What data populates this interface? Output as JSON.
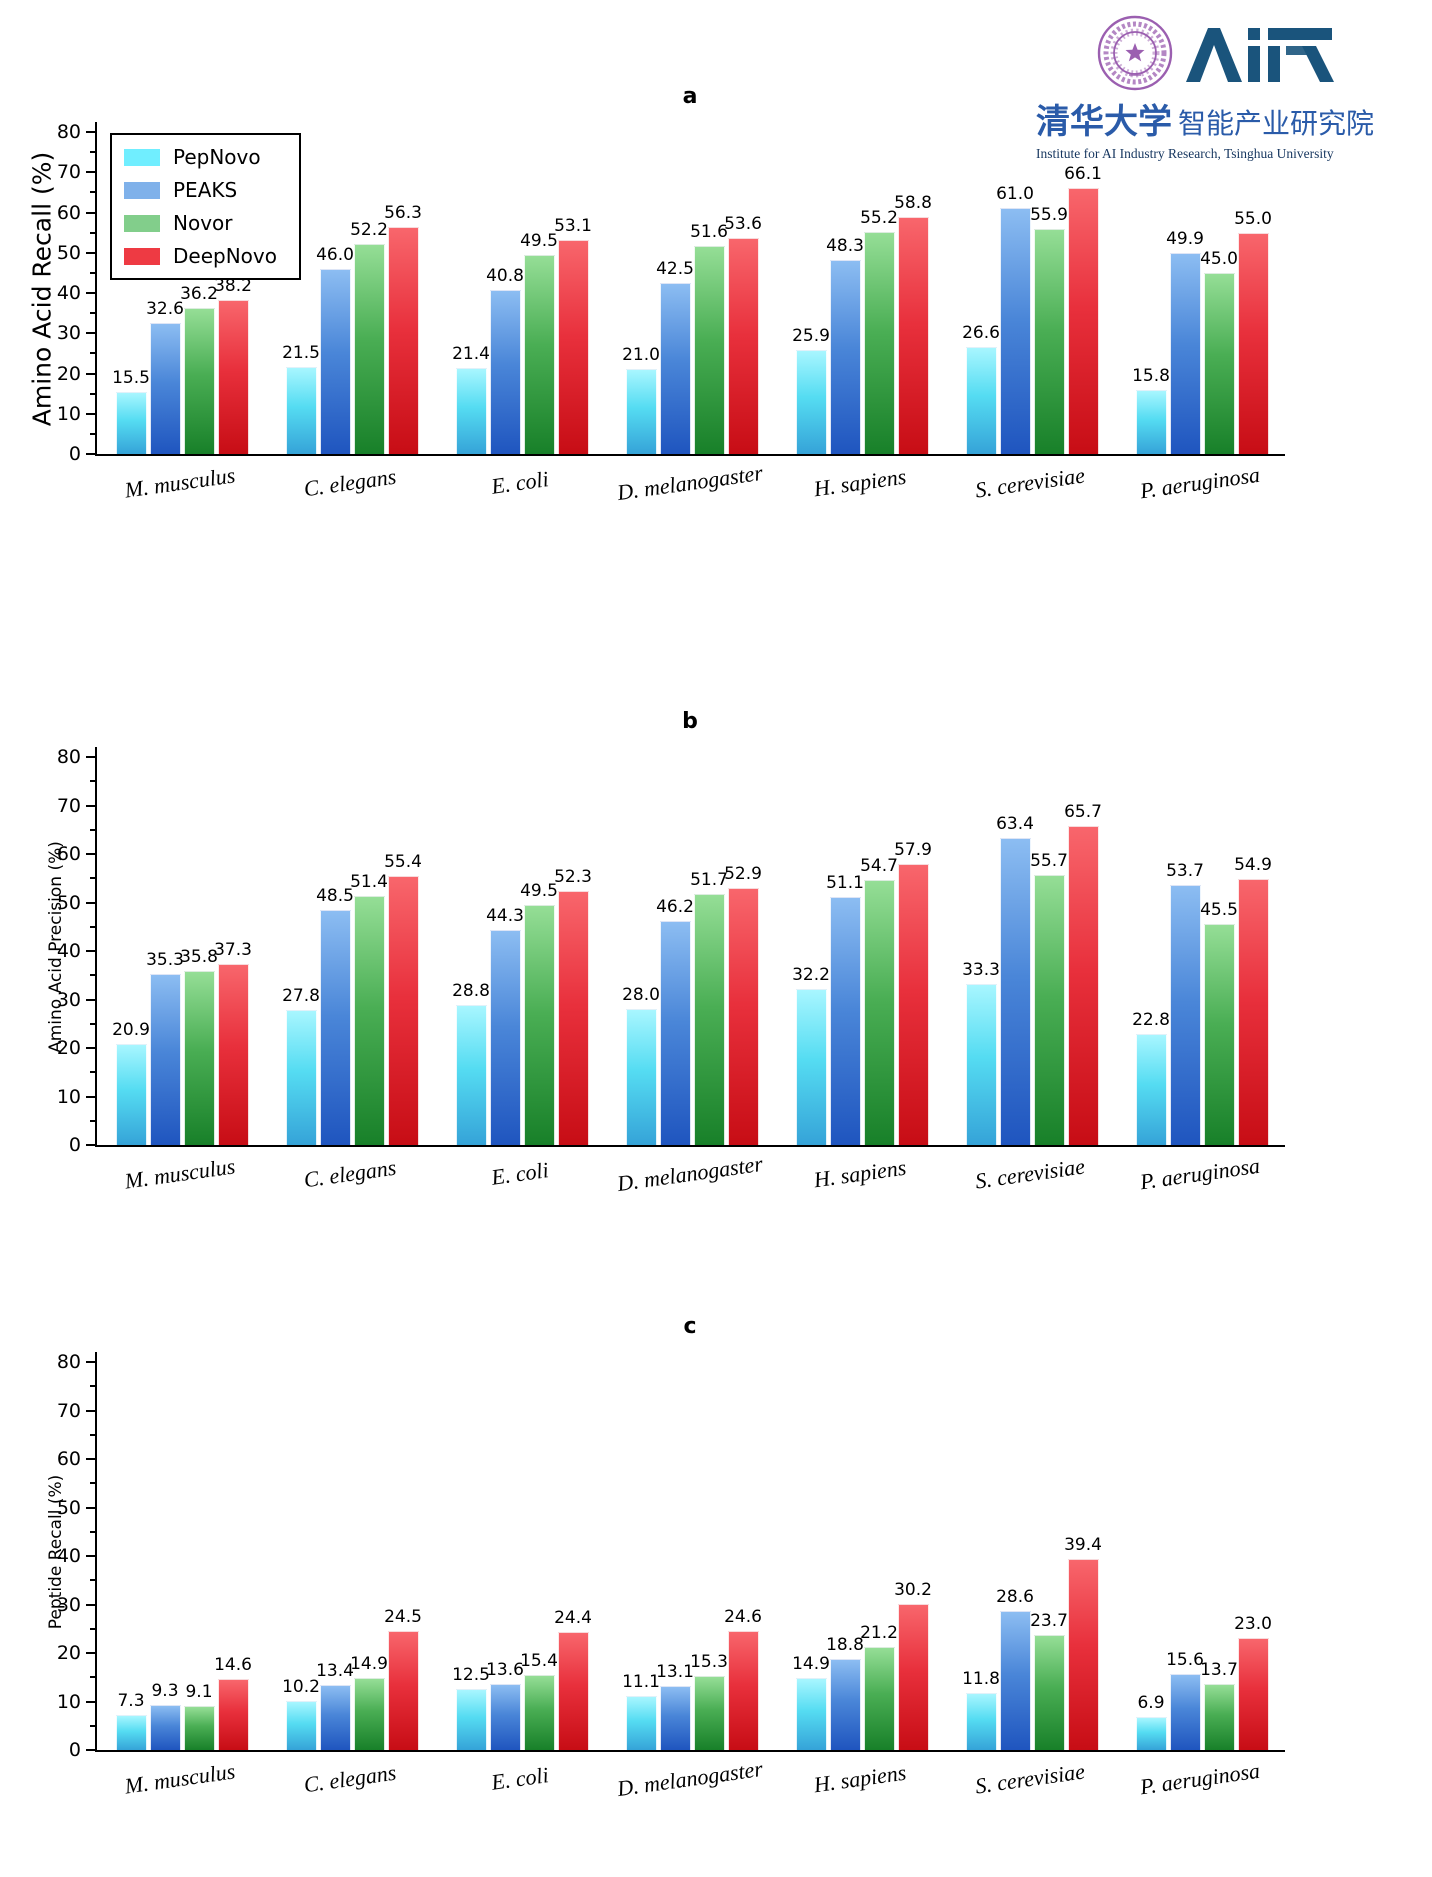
{
  "logo": {
    "air_text": "AiR",
    "cn_calligraphy": "清华大学",
    "cn_institute": "智能产业研究院",
    "en_institute": "Institute for AI Industry Research,  Tsinghua University"
  },
  "legend": {
    "position": "upper-left",
    "items": [
      {
        "label": "PepNovo",
        "color": "#70eeff",
        "gradient": [
          "#a8f6ff",
          "#55dcf2",
          "#35a3d8"
        ]
      },
      {
        "label": "PEAKS",
        "color": "#7fb1ea",
        "gradient": [
          "#8cbdf2",
          "#4a86d8",
          "#1f55bf"
        ]
      },
      {
        "label": "Novor",
        "color": "#82ce8b",
        "gradient": [
          "#95de96",
          "#4aae54",
          "#188029"
        ]
      },
      {
        "label": "DeepNovo",
        "color": "#ee3a43",
        "gradient": [
          "#f8666c",
          "#e8303c",
          "#c70d15"
        ]
      }
    ]
  },
  "chart_data": [
    {
      "type": "bar",
      "panel": "a",
      "ylabel": "Amino Acid Recall (%)",
      "ylim": [
        0,
        80
      ],
      "yticks": [
        0,
        10,
        20,
        30,
        40,
        50,
        60,
        70,
        80
      ],
      "grid": false,
      "categories": [
        "M. musculus",
        "C. elegans",
        "E. coli",
        "D. melanogaster",
        "H. sapiens",
        "S. cerevisiae",
        "P. aeruginosa"
      ],
      "series": [
        {
          "name": "PepNovo",
          "values": [
            15.5,
            21.5,
            21.4,
            21.0,
            25.9,
            26.6,
            15.8
          ]
        },
        {
          "name": "PEAKS",
          "values": [
            32.6,
            46.0,
            40.8,
            42.5,
            48.3,
            61.0,
            49.9
          ]
        },
        {
          "name": "Novor",
          "values": [
            36.2,
            52.2,
            49.5,
            51.6,
            55.2,
            55.9,
            45.0
          ]
        },
        {
          "name": "DeepNovo",
          "values": [
            38.2,
            56.3,
            53.1,
            53.6,
            58.8,
            66.1,
            55.0
          ]
        }
      ]
    },
    {
      "type": "bar",
      "panel": "b",
      "ylabel": "Amino Acid Precision (%)",
      "ylim": [
        0,
        80
      ],
      "yticks": [
        0,
        10,
        20,
        30,
        40,
        50,
        60,
        70,
        80
      ],
      "grid": false,
      "categories": [
        "M. musculus",
        "C. elegans",
        "E. coli",
        "D. melanogaster",
        "H. sapiens",
        "S. cerevisiae",
        "P. aeruginosa"
      ],
      "series": [
        {
          "name": "PepNovo",
          "values": [
            20.9,
            27.8,
            28.8,
            28.0,
            32.2,
            33.3,
            22.8
          ]
        },
        {
          "name": "PEAKS",
          "values": [
            35.3,
            48.5,
            44.3,
            46.2,
            51.1,
            63.4,
            53.7
          ]
        },
        {
          "name": "Novor",
          "values": [
            35.8,
            51.4,
            49.5,
            51.7,
            54.7,
            55.7,
            45.5
          ]
        },
        {
          "name": "DeepNovo",
          "values": [
            37.3,
            55.4,
            52.3,
            52.9,
            57.9,
            65.7,
            54.9
          ]
        }
      ]
    },
    {
      "type": "bar",
      "panel": "c",
      "ylabel": "Peptide Recall (%)",
      "ylim": [
        0,
        80
      ],
      "yticks": [
        0,
        10,
        20,
        30,
        40,
        50,
        60,
        70,
        80
      ],
      "grid": false,
      "categories": [
        "M. musculus",
        "C. elegans",
        "E. coli",
        "D. melanogaster",
        "H. sapiens",
        "S. cerevisiae",
        "P. aeruginosa"
      ],
      "series": [
        {
          "name": "PepNovo",
          "values": [
            7.3,
            10.2,
            12.5,
            11.1,
            14.9,
            11.8,
            6.9
          ]
        },
        {
          "name": "PEAKS",
          "values": [
            9.3,
            13.4,
            13.6,
            13.1,
            18.8,
            28.6,
            15.6
          ]
        },
        {
          "name": "Novor",
          "values": [
            9.1,
            14.9,
            15.4,
            15.3,
            21.2,
            23.7,
            13.7
          ]
        },
        {
          "name": "DeepNovo",
          "values": [
            14.6,
            24.5,
            24.4,
            24.6,
            30.2,
            39.4,
            23.0
          ]
        }
      ]
    }
  ]
}
